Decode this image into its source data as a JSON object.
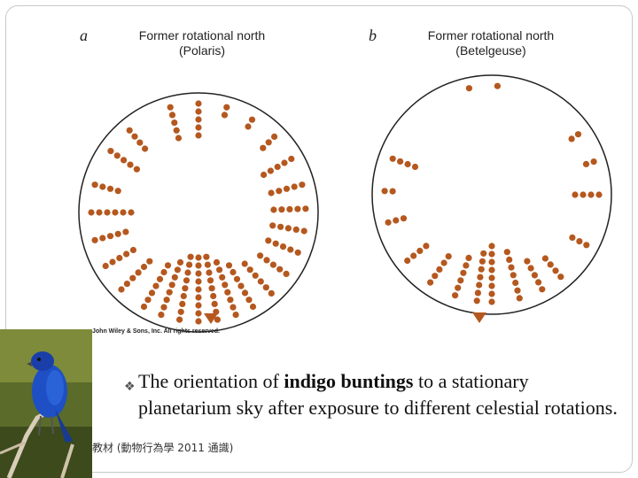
{
  "figure": {
    "panel_a": {
      "letter": "a",
      "title_line1": "Former rotational north",
      "title_line2": "(Polaris)"
    },
    "panel_b": {
      "letter": "b",
      "title_line1": "Former rotational north",
      "title_line2": "(Betelgeuse)"
    },
    "copyright": "John Wiley & Sons, Inc. All rights reserved.",
    "dot_color": "#b5581f"
  },
  "caption": {
    "prefix": "The orientation of ",
    "bold": "indigo buntings",
    "suffix": " to a stationary planetarium sky after exposure to different celestial rotations."
  },
  "footer": "教材 (動物行為學 2011 通識)"
}
